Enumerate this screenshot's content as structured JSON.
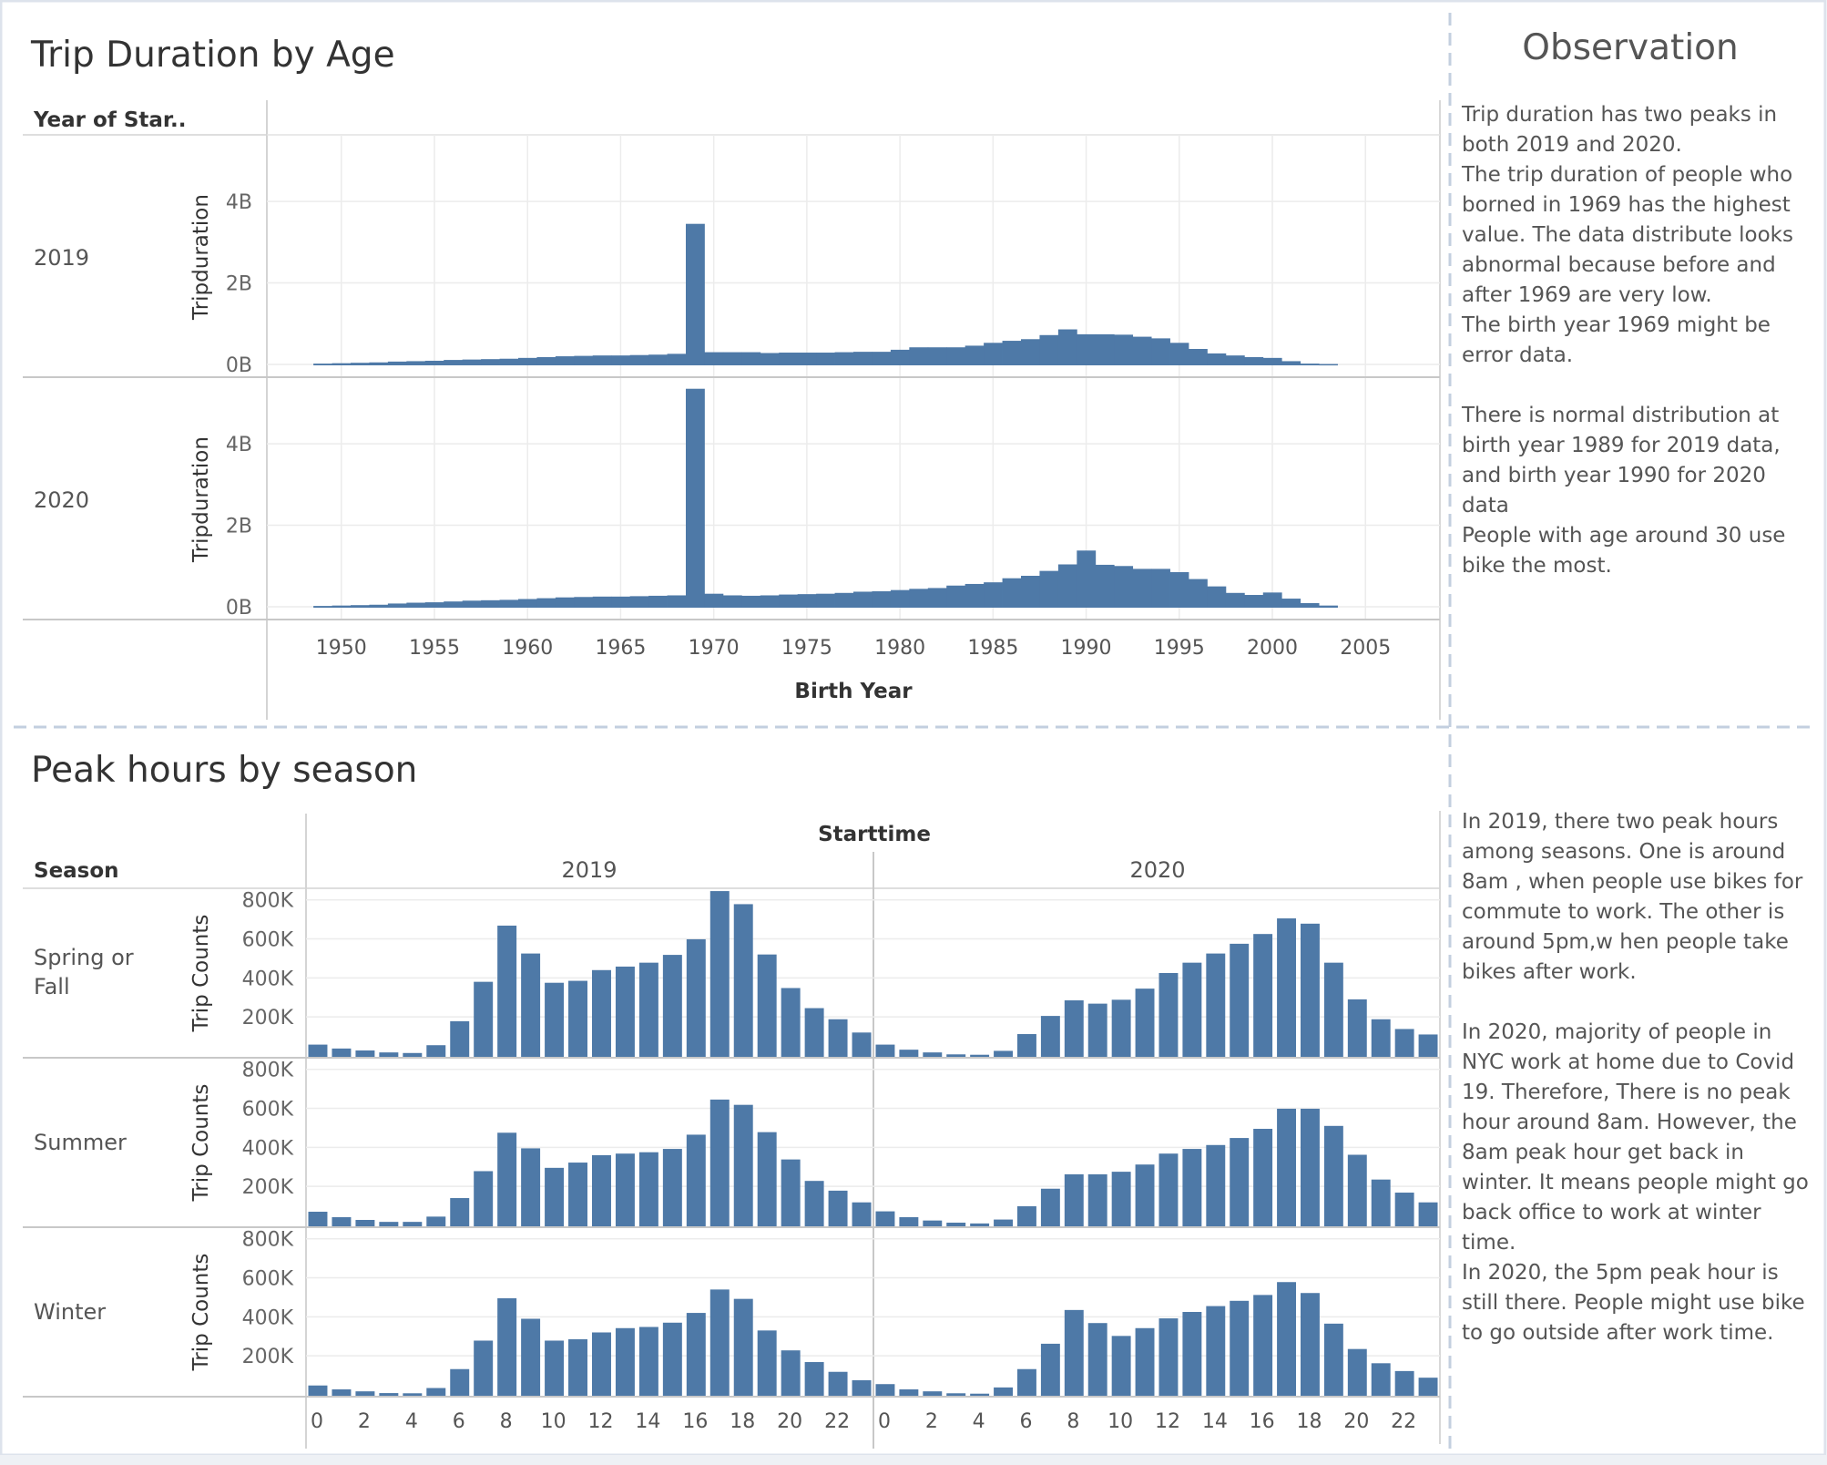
{
  "top_section": {
    "title": "Trip Duration by Age",
    "row_header": "Year of Star..",
    "row_labels": [
      "2019",
      "2020"
    ],
    "y_axis_title": "Tripduration",
    "y_tick_labels": [
      "0B",
      "2B",
      "4B"
    ],
    "x_axis_title": "Birth Year"
  },
  "bottom_section": {
    "title": "Peak hours by season",
    "row_header": "Season",
    "column_header": "Starttime",
    "column_labels": [
      "2019",
      "2020"
    ],
    "row_labels": [
      "Spring or Fall",
      "Summer",
      "Winter"
    ],
    "y_axis_title": "Trip Counts",
    "y_tick_labels": [
      "200K",
      "400K",
      "600K",
      "800K"
    ]
  },
  "observation": {
    "title": "Observation",
    "paragraphs_top": [
      "Trip duration has two peaks in both 2019 and 2020.",
      "The trip duration of people who borned in 1969 has the highest value. The data distribute looks abnormal because before and after 1969 are very low.",
      "The birth year 1969 might be error data.",
      "",
      "There is normal distribution at birth year 1989 for 2019 data, and birth year 1990 for 2020 data",
      "People with age around 30 use bike the most."
    ],
    "paragraphs_bottom": [
      "In 2019, there two peak hours among seasons. One is around 8am , when people use bikes for commute to work. The other is around 5pm,w hen people take bikes after work.",
      "",
      "In 2020, majority of people in NYC work at home due to Covid 19. Therefore, There is no peak hour around 8am. However, the 8am peak hour get back in winter. It means people might go back office to work at winter time.",
      "In 2020, the 5pm peak hour is still there. People might use bike to go outside after work time."
    ]
  },
  "colors": {
    "bar": "#4e79a7",
    "grid": "#ececec",
    "axis": "#c8c8c8",
    "divider": "#c3cfdf"
  },
  "chart_data": [
    {
      "type": "bar",
      "title": "Trip Duration by Age",
      "xlabel": "Birth Year",
      "ylabel": "Tripduration",
      "x_ticks": [
        1950,
        1955,
        1960,
        1965,
        1970,
        1975,
        1980,
        1985,
        1990,
        1995,
        2000,
        2005
      ],
      "xlim": [
        1946,
        2009
      ],
      "ylim": [
        0,
        5.5
      ],
      "y_unit": "B",
      "x": [
        1949,
        1950,
        1951,
        1952,
        1953,
        1954,
        1955,
        1956,
        1957,
        1958,
        1959,
        1960,
        1961,
        1962,
        1963,
        1964,
        1965,
        1966,
        1967,
        1968,
        1969,
        1970,
        1971,
        1972,
        1973,
        1974,
        1975,
        1976,
        1977,
        1978,
        1979,
        1980,
        1981,
        1982,
        1983,
        1984,
        1985,
        1986,
        1987,
        1988,
        1989,
        1990,
        1991,
        1992,
        1993,
        1994,
        1995,
        1996,
        1997,
        1998,
        1999,
        2000,
        2001,
        2002,
        2003
      ],
      "series": [
        {
          "name": "2019",
          "values": [
            0.02,
            0.03,
            0.04,
            0.05,
            0.07,
            0.08,
            0.09,
            0.11,
            0.12,
            0.13,
            0.14,
            0.16,
            0.18,
            0.2,
            0.21,
            0.22,
            0.22,
            0.23,
            0.24,
            0.26,
            3.45,
            0.3,
            0.3,
            0.3,
            0.28,
            0.29,
            0.29,
            0.29,
            0.3,
            0.31,
            0.31,
            0.36,
            0.42,
            0.42,
            0.42,
            0.46,
            0.53,
            0.58,
            0.62,
            0.72,
            0.86,
            0.74,
            0.74,
            0.73,
            0.68,
            0.64,
            0.53,
            0.38,
            0.27,
            0.22,
            0.18,
            0.16,
            0.08,
            0.02,
            0.01
          ]
        },
        {
          "name": "2020",
          "values": [
            0.02,
            0.03,
            0.04,
            0.05,
            0.08,
            0.1,
            0.11,
            0.13,
            0.15,
            0.16,
            0.17,
            0.19,
            0.21,
            0.23,
            0.24,
            0.25,
            0.25,
            0.26,
            0.27,
            0.28,
            5.35,
            0.32,
            0.28,
            0.27,
            0.28,
            0.3,
            0.31,
            0.32,
            0.34,
            0.37,
            0.38,
            0.41,
            0.44,
            0.46,
            0.52,
            0.56,
            0.6,
            0.7,
            0.76,
            0.88,
            1.04,
            1.38,
            1.03,
            1.0,
            0.93,
            0.93,
            0.85,
            0.68,
            0.5,
            0.34,
            0.29,
            0.35,
            0.2,
            0.09,
            0.03
          ]
        }
      ]
    },
    {
      "type": "bar",
      "title": "Peak hours by season",
      "xlabel": "Starttime",
      "ylabel": "Trip Counts",
      "x_tick_labels": [
        "0",
        "2",
        "4",
        "6",
        "8",
        "10",
        "12",
        "14",
        "16",
        "18",
        "20",
        "22"
      ],
      "hours": [
        0,
        1,
        2,
        3,
        4,
        5,
        6,
        7,
        8,
        9,
        10,
        11,
        12,
        13,
        14,
        15,
        16,
        17,
        18,
        19,
        20,
        21,
        22,
        23
      ],
      "ylim": [
        0,
        850000
      ],
      "panels": [
        {
          "season": "Spring or Fall",
          "year": "2019",
          "values": [
            58000,
            38000,
            28000,
            18000,
            15000,
            55000,
            178000,
            380000,
            668000,
            525000,
            375000,
            385000,
            440000,
            458000,
            478000,
            518000,
            598000,
            845000,
            778000,
            520000,
            348000,
            245000,
            188000,
            120000
          ]
        },
        {
          "season": "Spring or Fall",
          "year": "2020",
          "values": [
            58000,
            32000,
            18000,
            8000,
            6000,
            26000,
            112000,
            205000,
            285000,
            268000,
            288000,
            345000,
            425000,
            478000,
            525000,
            575000,
            625000,
            705000,
            678000,
            478000,
            290000,
            188000,
            138000,
            110000
          ]
        },
        {
          "season": "Summer",
          "year": "2019",
          "values": [
            70000,
            42000,
            28000,
            18000,
            18000,
            45000,
            140000,
            278000,
            475000,
            395000,
            295000,
            322000,
            360000,
            368000,
            375000,
            392000,
            465000,
            645000,
            618000,
            478000,
            338000,
            228000,
            178000,
            118000
          ]
        },
        {
          "season": "Summer",
          "year": "2020",
          "values": [
            72000,
            42000,
            25000,
            14000,
            10000,
            30000,
            98000,
            188000,
            262000,
            262000,
            275000,
            312000,
            368000,
            392000,
            412000,
            448000,
            495000,
            598000,
            598000,
            510000,
            362000,
            235000,
            168000,
            118000
          ]
        },
        {
          "season": "Winter",
          "year": "2019",
          "values": [
            48000,
            28000,
            18000,
            9000,
            8000,
            35000,
            132000,
            278000,
            495000,
            390000,
            278000,
            285000,
            320000,
            342000,
            348000,
            370000,
            420000,
            540000,
            492000,
            330000,
            228000,
            168000,
            118000,
            75000
          ]
        },
        {
          "season": "Winter",
          "year": "2020",
          "values": [
            55000,
            28000,
            18000,
            8000,
            6000,
            38000,
            132000,
            262000,
            435000,
            368000,
            302000,
            342000,
            392000,
            425000,
            455000,
            482000,
            512000,
            578000,
            522000,
            365000,
            235000,
            162000,
            122000,
            88000
          ]
        }
      ]
    }
  ]
}
